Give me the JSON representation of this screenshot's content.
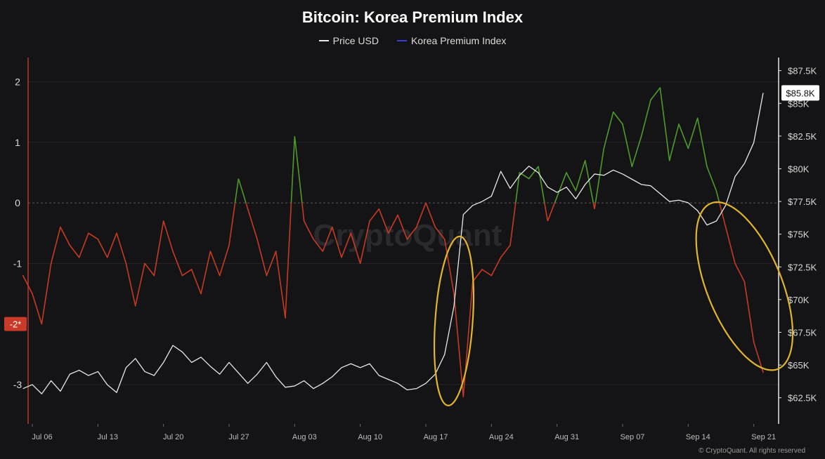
{
  "chart_data": {
    "type": "line",
    "title": "Bitcoin: Korea Premium Index",
    "legend": {
      "placement": "top-center"
    },
    "left_axis": {
      "ylim": [
        -3.65,
        2.4
      ],
      "ticks": [
        {
          "value": 2,
          "label": "2"
        },
        {
          "value": 1,
          "label": "1"
        },
        {
          "value": 0,
          "label": "0"
        },
        {
          "value": -1,
          "label": "-1"
        },
        {
          "value": -3,
          "label": "-3"
        }
      ],
      "badge": {
        "value": -2,
        "label": "-2*"
      }
    },
    "right_axis": {
      "ylim": [
        60500,
        88500
      ],
      "ticks": [
        {
          "value": 87500,
          "label": "$87.5K"
        },
        {
          "value": 85000,
          "label": "$85K"
        },
        {
          "value": 82500,
          "label": "$82.5K"
        },
        {
          "value": 80000,
          "label": "$80K"
        },
        {
          "value": 77500,
          "label": "$77.5K"
        },
        {
          "value": 75000,
          "label": "$75K"
        },
        {
          "value": 72500,
          "label": "$72.5K"
        },
        {
          "value": 70000,
          "label": "$70K"
        },
        {
          "value": 67500,
          "label": "$67.5K"
        },
        {
          "value": 65000,
          "label": "$65K"
        },
        {
          "value": 62500,
          "label": "$62.5K"
        }
      ],
      "current_price_label": {
        "value": 85800,
        "label": "$85.8K"
      }
    },
    "x_axis": {
      "range": [
        "2025-07-06",
        "2025-09-22"
      ],
      "ticks": [
        {
          "date": "2025-07-06",
          "label": "Jul 06"
        },
        {
          "date": "2025-07-13",
          "label": "Jul 13"
        },
        {
          "date": "2025-07-20",
          "label": "Jul 20"
        },
        {
          "date": "2025-07-27",
          "label": "Jul 27"
        },
        {
          "date": "2025-08-03",
          "label": "Aug 03"
        },
        {
          "date": "2025-08-10",
          "label": "Aug 10"
        },
        {
          "date": "2025-08-17",
          "label": "Aug 17"
        },
        {
          "date": "2025-08-24",
          "label": "Aug 24"
        },
        {
          "date": "2025-08-31",
          "label": "Aug 31"
        },
        {
          "date": "2025-09-07",
          "label": "Sep 07"
        },
        {
          "date": "2025-09-14",
          "label": "Sep 14"
        },
        {
          "date": "2025-09-21",
          "label": "Sep 21"
        }
      ]
    },
    "series": [
      {
        "name": "Price USD",
        "axis": "right",
        "color": "#e8e8e8",
        "points": [
          [
            "2025-07-05",
            63200
          ],
          [
            "2025-07-06",
            63500
          ],
          [
            "2025-07-07",
            62800
          ],
          [
            "2025-07-08",
            63800
          ],
          [
            "2025-07-09",
            63000
          ],
          [
            "2025-07-10",
            64300
          ],
          [
            "2025-07-11",
            64600
          ],
          [
            "2025-07-12",
            64200
          ],
          [
            "2025-07-13",
            64500
          ],
          [
            "2025-07-14",
            63500
          ],
          [
            "2025-07-15",
            62900
          ],
          [
            "2025-07-16",
            64800
          ],
          [
            "2025-07-17",
            65500
          ],
          [
            "2025-07-18",
            64500
          ],
          [
            "2025-07-19",
            64200
          ],
          [
            "2025-07-20",
            65200
          ],
          [
            "2025-07-21",
            66500
          ],
          [
            "2025-07-22",
            66000
          ],
          [
            "2025-07-23",
            65200
          ],
          [
            "2025-07-24",
            65600
          ],
          [
            "2025-07-25",
            64900
          ],
          [
            "2025-07-26",
            64300
          ],
          [
            "2025-07-27",
            65200
          ],
          [
            "2025-07-28",
            64400
          ],
          [
            "2025-07-29",
            63600
          ],
          [
            "2025-07-30",
            64300
          ],
          [
            "2025-07-31",
            65200
          ],
          [
            "2025-08-01",
            64100
          ],
          [
            "2025-08-02",
            63300
          ],
          [
            "2025-08-03",
            63400
          ],
          [
            "2025-08-04",
            63800
          ],
          [
            "2025-08-05",
            63200
          ],
          [
            "2025-08-06",
            63600
          ],
          [
            "2025-08-07",
            64100
          ],
          [
            "2025-08-08",
            64800
          ],
          [
            "2025-08-09",
            65100
          ],
          [
            "2025-08-10",
            64800
          ],
          [
            "2025-08-11",
            65100
          ],
          [
            "2025-08-12",
            64200
          ],
          [
            "2025-08-13",
            63900
          ],
          [
            "2025-08-14",
            63600
          ],
          [
            "2025-08-15",
            63100
          ],
          [
            "2025-08-16",
            63200
          ],
          [
            "2025-08-17",
            63600
          ],
          [
            "2025-08-18",
            64300
          ],
          [
            "2025-08-19",
            65800
          ],
          [
            "2025-08-20",
            69500
          ],
          [
            "2025-08-21",
            76500
          ],
          [
            "2025-08-22",
            77200
          ],
          [
            "2025-08-23",
            77500
          ],
          [
            "2025-08-24",
            77900
          ],
          [
            "2025-08-25",
            79800
          ],
          [
            "2025-08-26",
            78500
          ],
          [
            "2025-08-27",
            79500
          ],
          [
            "2025-08-28",
            80200
          ],
          [
            "2025-08-29",
            79700
          ],
          [
            "2025-08-30",
            78600
          ],
          [
            "2025-08-31",
            78200
          ],
          [
            "2025-09-01",
            78600
          ],
          [
            "2025-09-02",
            77700
          ],
          [
            "2025-09-03",
            78800
          ],
          [
            "2025-09-04",
            79600
          ],
          [
            "2025-09-05",
            79500
          ],
          [
            "2025-09-06",
            79900
          ],
          [
            "2025-09-07",
            79600
          ],
          [
            "2025-09-08",
            79200
          ],
          [
            "2025-09-09",
            78800
          ],
          [
            "2025-09-10",
            78700
          ],
          [
            "2025-09-11",
            78100
          ],
          [
            "2025-09-12",
            77500
          ],
          [
            "2025-09-13",
            77600
          ],
          [
            "2025-09-14",
            77400
          ],
          [
            "2025-09-15",
            76800
          ],
          [
            "2025-09-16",
            75700
          ],
          [
            "2025-09-17",
            76000
          ],
          [
            "2025-09-18",
            77200
          ],
          [
            "2025-09-19",
            79400
          ],
          [
            "2025-09-20",
            80400
          ],
          [
            "2025-09-21",
            82000
          ],
          [
            "2025-09-22",
            85800
          ]
        ]
      },
      {
        "name": "Korea Premium Index",
        "axis": "left",
        "color": "#3b3bd8",
        "positive_color": "#4e9a2a",
        "negative_color": "#c63a22",
        "points": [
          [
            "2025-07-05",
            -1.2
          ],
          [
            "2025-07-06",
            -1.5
          ],
          [
            "2025-07-07",
            -2.0
          ],
          [
            "2025-07-08",
            -1.0
          ],
          [
            "2025-07-09",
            -0.4
          ],
          [
            "2025-07-10",
            -0.7
          ],
          [
            "2025-07-11",
            -0.9
          ],
          [
            "2025-07-12",
            -0.5
          ],
          [
            "2025-07-13",
            -0.6
          ],
          [
            "2025-07-14",
            -0.9
          ],
          [
            "2025-07-15",
            -0.5
          ],
          [
            "2025-07-16",
            -1.0
          ],
          [
            "2025-07-17",
            -1.7
          ],
          [
            "2025-07-18",
            -1.0
          ],
          [
            "2025-07-19",
            -1.2
          ],
          [
            "2025-07-20",
            -0.3
          ],
          [
            "2025-07-21",
            -0.8
          ],
          [
            "2025-07-22",
            -1.2
          ],
          [
            "2025-07-23",
            -1.1
          ],
          [
            "2025-07-24",
            -1.5
          ],
          [
            "2025-07-25",
            -0.8
          ],
          [
            "2025-07-26",
            -1.2
          ],
          [
            "2025-07-27",
            -0.7
          ],
          [
            "2025-07-28",
            0.4
          ],
          [
            "2025-07-29",
            -0.1
          ],
          [
            "2025-07-30",
            -0.6
          ],
          [
            "2025-07-31",
            -1.2
          ],
          [
            "2025-08-01",
            -0.8
          ],
          [
            "2025-08-02",
            -1.9
          ],
          [
            "2025-08-03",
            1.1
          ],
          [
            "2025-08-04",
            -0.3
          ],
          [
            "2025-08-05",
            -0.6
          ],
          [
            "2025-08-06",
            -0.8
          ],
          [
            "2025-08-07",
            -0.4
          ],
          [
            "2025-08-08",
            -0.9
          ],
          [
            "2025-08-09",
            -0.5
          ],
          [
            "2025-08-10",
            -1.0
          ],
          [
            "2025-08-11",
            -0.3
          ],
          [
            "2025-08-12",
            -0.1
          ],
          [
            "2025-08-13",
            -0.5
          ],
          [
            "2025-08-14",
            -0.2
          ],
          [
            "2025-08-15",
            -0.6
          ],
          [
            "2025-08-16",
            -0.4
          ],
          [
            "2025-08-17",
            0.0
          ],
          [
            "2025-08-18",
            -0.4
          ],
          [
            "2025-08-19",
            -0.6
          ],
          [
            "2025-08-20",
            -1.5
          ],
          [
            "2025-08-21",
            -3.2
          ],
          [
            "2025-08-22",
            -1.3
          ],
          [
            "2025-08-23",
            -1.1
          ],
          [
            "2025-08-24",
            -1.2
          ],
          [
            "2025-08-25",
            -0.9
          ],
          [
            "2025-08-26",
            -0.7
          ],
          [
            "2025-08-27",
            0.5
          ],
          [
            "2025-08-28",
            0.4
          ],
          [
            "2025-08-29",
            0.6
          ],
          [
            "2025-08-30",
            -0.3
          ],
          [
            "2025-08-31",
            0.1
          ],
          [
            "2025-09-01",
            0.5
          ],
          [
            "2025-09-02",
            0.2
          ],
          [
            "2025-09-03",
            0.7
          ],
          [
            "2025-09-04",
            -0.1
          ],
          [
            "2025-09-05",
            0.9
          ],
          [
            "2025-09-06",
            1.5
          ],
          [
            "2025-09-07",
            1.3
          ],
          [
            "2025-09-08",
            0.6
          ],
          [
            "2025-09-09",
            1.1
          ],
          [
            "2025-09-10",
            1.7
          ],
          [
            "2025-09-11",
            1.9
          ],
          [
            "2025-09-12",
            0.7
          ],
          [
            "2025-09-13",
            1.3
          ],
          [
            "2025-09-14",
            0.9
          ],
          [
            "2025-09-15",
            1.4
          ],
          [
            "2025-09-16",
            0.6
          ],
          [
            "2025-09-17",
            0.2
          ],
          [
            "2025-09-18",
            -0.4
          ],
          [
            "2025-09-19",
            -1.0
          ],
          [
            "2025-09-20",
            -1.3
          ],
          [
            "2025-09-21",
            -2.3
          ],
          [
            "2025-09-22",
            -2.8
          ]
        ]
      }
    ],
    "annotations": [
      {
        "shape": "ellipse",
        "color": "#e2b52e",
        "x_range": [
          "2025-08-18",
          "2025-08-22"
        ],
        "left_y_range": [
          -3.35,
          -0.55
        ]
      },
      {
        "shape": "ellipse",
        "color": "#e2b52e",
        "x_range": [
          "2025-09-16",
          "2025-09-24"
        ],
        "left_y_range": [
          -2.85,
          0.1
        ]
      }
    ],
    "watermark": "CryptoQuant",
    "footer": "© CryptoQuant. All rights reserved"
  }
}
